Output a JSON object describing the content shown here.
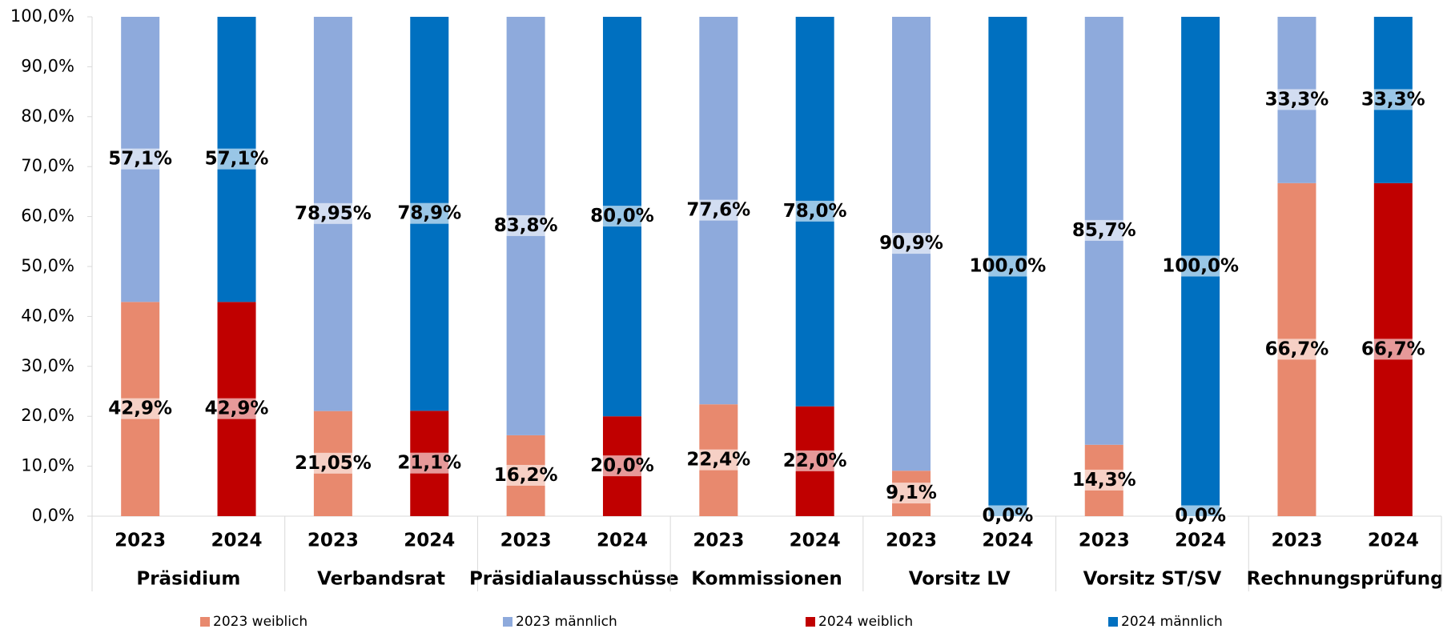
{
  "chart_data": {
    "type": "stacked_bar",
    "categories": [
      "2023",
      "2024",
      "2023",
      "2024",
      "2023",
      "2024",
      "2023",
      "2024",
      "2023",
      "2024",
      "2023",
      "2024",
      "2023",
      "2024"
    ],
    "groups": [
      "Präsidium",
      "Verbandsrat",
      "Präsidialausschüsse",
      "Kommissionen",
      "Vorsitz LV",
      "Vorsitz ST/SV",
      "Rechnungsprüfung"
    ],
    "series": [
      {
        "name": "2023 weiblich",
        "color": "#e8896e",
        "values": [
          42.9,
          null,
          21.05,
          null,
          16.2,
          null,
          22.4,
          null,
          9.1,
          null,
          14.3,
          null,
          66.7,
          null
        ],
        "value_labels": [
          "42,9%",
          null,
          "21,05%",
          null,
          "16,2%",
          null,
          "22,4%",
          null,
          "9,1%",
          null,
          "14,3%",
          null,
          "66,7%",
          null
        ]
      },
      {
        "name": "2023 männlich",
        "color": "#8eaadc",
        "values": [
          57.1,
          null,
          78.95,
          null,
          83.8,
          null,
          77.6,
          null,
          90.9,
          null,
          85.7,
          null,
          33.3,
          null
        ],
        "value_labels": [
          "57,1%",
          null,
          "78,95%",
          null,
          "83,8%",
          null,
          "77,6%",
          null,
          "90,9%",
          null,
          "85,7%",
          null,
          "33,3%",
          null
        ]
      },
      {
        "name": "2024 weiblich",
        "color": "#c00000",
        "values": [
          null,
          42.9,
          null,
          21.1,
          null,
          20.0,
          null,
          22.0,
          null,
          0.0,
          null,
          0.0,
          null,
          66.7
        ],
        "value_labels": [
          null,
          "42,9%",
          null,
          "21,1%",
          null,
          "20,0%",
          null,
          "22,0%",
          null,
          "0,0%",
          null,
          "0,0%",
          null,
          "66,7%"
        ]
      },
      {
        "name": "2024 männlich",
        "color": "#0070c0",
        "values": [
          null,
          57.1,
          null,
          78.9,
          null,
          80.0,
          null,
          78.0,
          null,
          100.0,
          null,
          100.0,
          null,
          33.3
        ],
        "value_labels": [
          null,
          "57,1%",
          null,
          "78,9%",
          null,
          "80,0%",
          null,
          "78,0%",
          null,
          "100,0%",
          null,
          "100,0%",
          null,
          "33,3%"
        ]
      }
    ],
    "ylim": [
      0,
      100
    ],
    "yticks": [
      {
        "value": 0,
        "label": "0,0%"
      },
      {
        "value": 10,
        "label": "10,0%"
      },
      {
        "value": 20,
        "label": "20,0%"
      },
      {
        "value": 30,
        "label": "30,0%"
      },
      {
        "value": 40,
        "label": "40,0%"
      },
      {
        "value": 50,
        "label": "50,0%"
      },
      {
        "value": 60,
        "label": "60,0%"
      },
      {
        "value": 70,
        "label": "70,0%"
      },
      {
        "value": 80,
        "label": "80,0%"
      },
      {
        "value": 90,
        "label": "90,0%"
      },
      {
        "value": 100,
        "label": "100,0%"
      }
    ],
    "grid": false,
    "legend": "bottom"
  }
}
